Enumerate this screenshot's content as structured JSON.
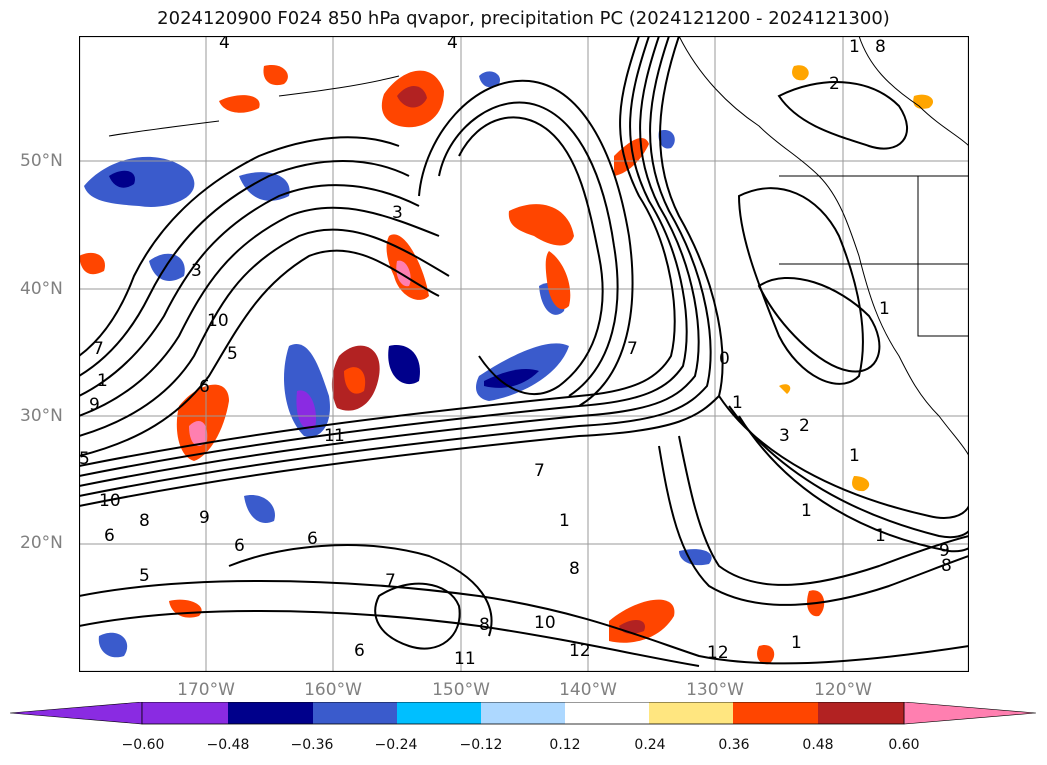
{
  "title": "2024120900 F024 850 hPa qvapor, precipitation PC (2024121200 - 2024121300)",
  "map": {
    "lat_labels": [
      "50°N",
      "40°N",
      "30°N",
      "20°N"
    ],
    "lon_labels": [
      "170°W",
      "160°W",
      "150°W",
      "140°W",
      "130°W",
      "120°W"
    ],
    "contour_labels": [
      "4",
      "4",
      "1",
      "8",
      "2",
      "3",
      "3",
      "10",
      "7",
      "1",
      "6",
      "5",
      "9",
      "1",
      "7",
      "1",
      "5",
      "10",
      "9",
      "8",
      "6",
      "6",
      "6",
      "5",
      "7",
      "8",
      "6",
      "8",
      "11",
      "12",
      "10",
      "7",
      "1",
      "1",
      "3",
      "2",
      "1",
      "0",
      "1",
      "1",
      "9",
      "8",
      "12",
      "1",
      "1"
    ]
  },
  "colorbar": {
    "ticks": [
      "−0.60",
      "−0.48",
      "−0.36",
      "−0.24",
      "−0.12",
      "0.12",
      "0.24",
      "0.36",
      "0.48",
      "0.60"
    ],
    "colors": [
      "#8a2be2",
      "#00008b",
      "#3a5bcc",
      "#00bfff",
      "#add8ff",
      "#ffffff",
      "#ffe680",
      "#ffa500",
      "#ff4500",
      "#b22222",
      "#ff7fb0"
    ]
  }
}
